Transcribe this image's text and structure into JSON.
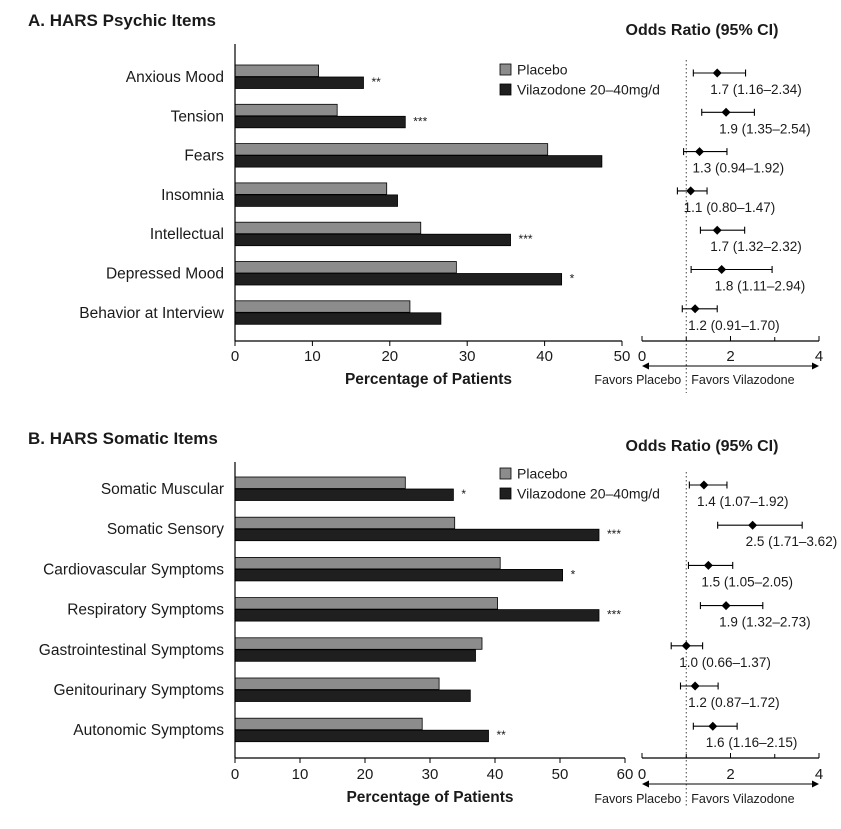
{
  "colors": {
    "placebo": "#8c8c8c",
    "vilazodone": "#1f1f1f",
    "axis": "#000000",
    "text": "#1a1a1a",
    "reference_line": "#444444"
  },
  "chart_data": [
    {
      "panel": "A",
      "type": "bar",
      "orientation": "horizontal",
      "title": "A. HARS Psychic Items",
      "xlabel": "Percentage of Patients",
      "xlim": [
        0,
        50
      ],
      "xticks": [
        0,
        10,
        20,
        30,
        40,
        50
      ],
      "categories": [
        "Anxious Mood",
        "Tension",
        "Fears",
        "Insomnia",
        "Intellectual",
        "Depressed Mood",
        "Behavior at Interview"
      ],
      "series": [
        {
          "name": "Placebo",
          "values": [
            10.8,
            13.2,
            40.4,
            19.6,
            24.0,
            28.6,
            22.6
          ]
        },
        {
          "name": "Vilazodone 20–40mg/d",
          "values": [
            16.6,
            22.0,
            47.4,
            21.0,
            35.6,
            42.2,
            26.6
          ]
        }
      ],
      "significance": [
        "**",
        "***",
        "",
        "",
        "***",
        "*",
        ""
      ],
      "legend_position": "top-right",
      "forest": {
        "title": "Odds Ratio (95% CI)",
        "xlim": [
          0,
          4
        ],
        "xticks": [
          0,
          2,
          4
        ],
        "reference": 1,
        "left_label": "Favors Placebo",
        "right_label": "Favors Vilazodone",
        "points": [
          {
            "or": 1.7,
            "lo": 1.16,
            "hi": 2.34,
            "label": "1.7 (1.16–2.34)"
          },
          {
            "or": 1.9,
            "lo": 1.35,
            "hi": 2.54,
            "label": "1.9 (1.35–2.54)"
          },
          {
            "or": 1.3,
            "lo": 0.94,
            "hi": 1.92,
            "label": "1.3 (0.94–1.92)"
          },
          {
            "or": 1.1,
            "lo": 0.8,
            "hi": 1.47,
            "label": "1.1 (0.80–1.47)"
          },
          {
            "or": 1.7,
            "lo": 1.32,
            "hi": 2.32,
            "label": "1.7 (1.32–2.32)"
          },
          {
            "or": 1.8,
            "lo": 1.11,
            "hi": 2.94,
            "label": "1.8 (1.11–2.94)"
          },
          {
            "or": 1.2,
            "lo": 0.91,
            "hi": 1.7,
            "label": "1.2 (0.91–1.70)"
          }
        ]
      }
    },
    {
      "panel": "B",
      "type": "bar",
      "orientation": "horizontal",
      "title": "B. HARS Somatic Items",
      "xlabel": "Percentage of Patients",
      "xlim": [
        0,
        60
      ],
      "xticks": [
        0,
        10,
        20,
        30,
        40,
        50,
        60
      ],
      "categories": [
        "Somatic Muscular",
        "Somatic Sensory",
        "Cardiovascular Symptoms",
        "Respiratory Symptoms",
        "Gastrointestinal Symptoms",
        "Genitourinary Symptoms",
        "Autonomic Symptoms"
      ],
      "series": [
        {
          "name": "Placebo",
          "values": [
            26.2,
            33.8,
            40.8,
            40.4,
            38.0,
            31.4,
            28.8
          ]
        },
        {
          "name": "Vilazodone 20–40mg/d",
          "values": [
            33.6,
            56.0,
            50.4,
            56.0,
            37.0,
            36.2,
            39.0
          ]
        }
      ],
      "significance": [
        "*",
        "***",
        "*",
        "***",
        "",
        "",
        "**"
      ],
      "legend_position": "top-right",
      "forest": {
        "title": "Odds Ratio (95% CI)",
        "xlim": [
          0,
          4
        ],
        "xticks": [
          0,
          2,
          4
        ],
        "reference": 1,
        "left_label": "Favors Placebo",
        "right_label": "Favors Vilazodone",
        "points": [
          {
            "or": 1.4,
            "lo": 1.07,
            "hi": 1.92,
            "label": "1.4 (1.07–1.92)"
          },
          {
            "or": 2.5,
            "lo": 1.71,
            "hi": 3.62,
            "label": "2.5 (1.71–3.62)"
          },
          {
            "or": 1.5,
            "lo": 1.05,
            "hi": 2.05,
            "label": "1.5 (1.05–2.05)"
          },
          {
            "or": 1.9,
            "lo": 1.32,
            "hi": 2.73,
            "label": "1.9 (1.32–2.73)"
          },
          {
            "or": 1.0,
            "lo": 0.66,
            "hi": 1.37,
            "label": "1.0 (0.66–1.37)"
          },
          {
            "or": 1.2,
            "lo": 0.87,
            "hi": 1.72,
            "label": "1.2 (0.87–1.72)"
          },
          {
            "or": 1.6,
            "lo": 1.16,
            "hi": 2.15,
            "label": "1.6 (1.16–2.15)"
          }
        ]
      }
    }
  ]
}
